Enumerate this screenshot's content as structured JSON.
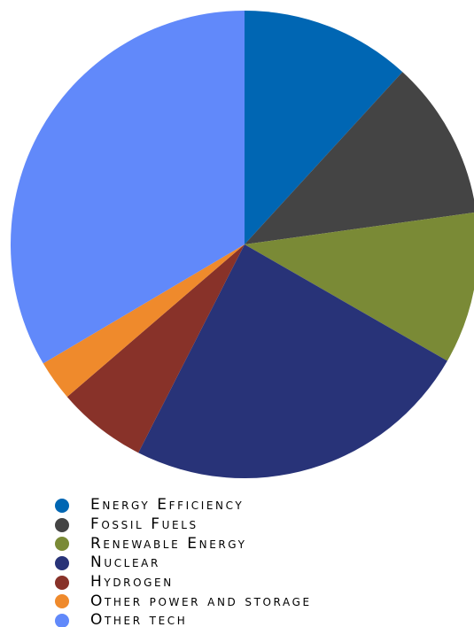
{
  "chart_data": {
    "type": "pie",
    "title": "",
    "legend_position": "bottom",
    "slices": [
      {
        "label": "Energy Efficiency",
        "value": 11.8,
        "color": "#0066b3"
      },
      {
        "label": "Fossil Fuels",
        "value": 11.0,
        "color": "#444444"
      },
      {
        "label": "Renewable Energy",
        "value": 10.5,
        "color": "#7a8a36"
      },
      {
        "label": "Nuclear",
        "value": 24.2,
        "color": "#283378"
      },
      {
        "label": "Hydrogen",
        "value": 6.2,
        "color": "#883229"
      },
      {
        "label": "Other power and storage",
        "value": 2.8,
        "color": "#ef8a2c"
      },
      {
        "label": "Other tech",
        "value": 33.5,
        "color": "#6189fa"
      }
    ]
  }
}
